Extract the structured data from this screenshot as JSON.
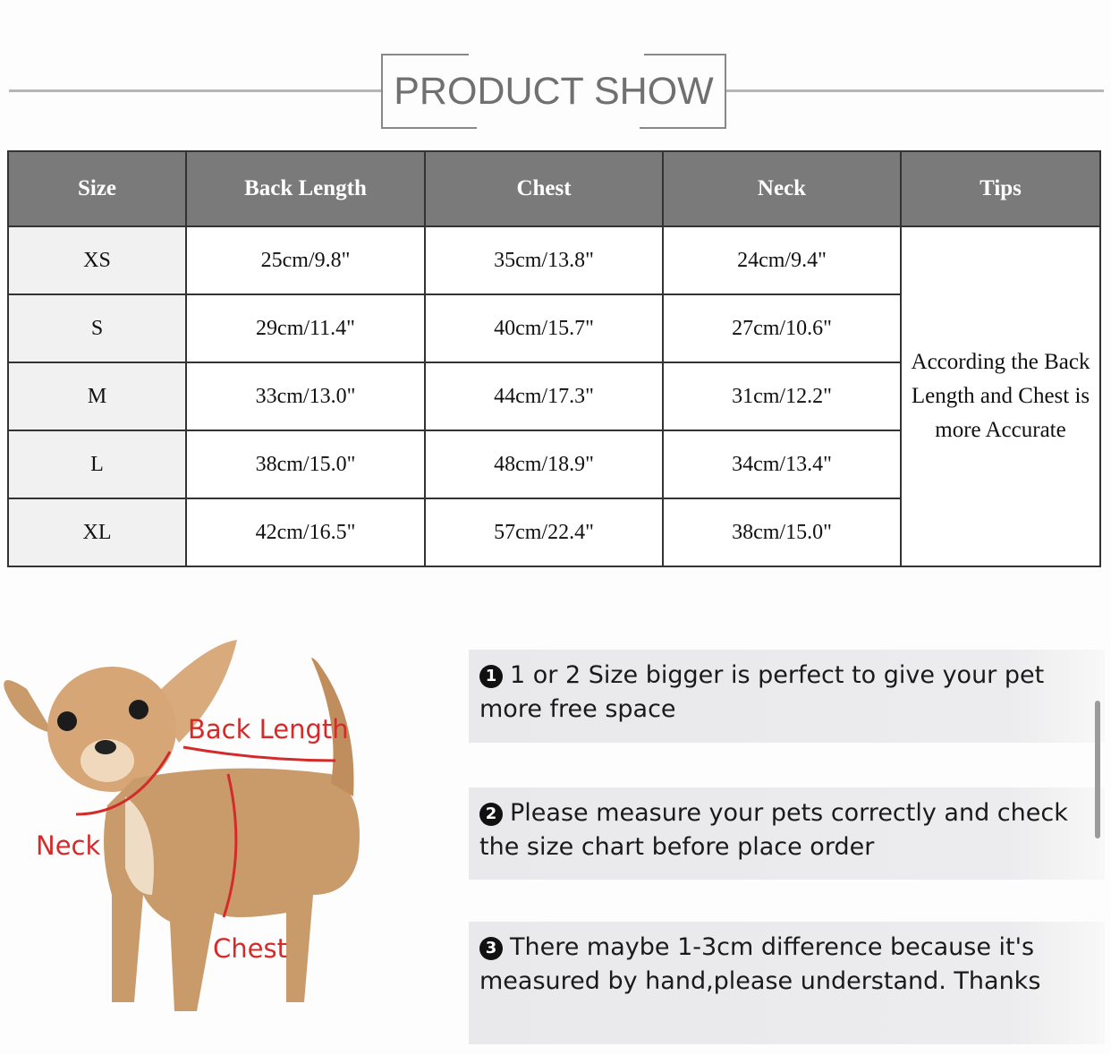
{
  "header": {
    "title": "PRODUCT SHOW"
  },
  "size_table": {
    "columns": [
      "Size",
      "Back Length",
      "Chest",
      "Neck",
      "Tips"
    ],
    "rows": [
      {
        "size": "XS",
        "back_length": "25cm/9.8\"",
        "chest": "35cm/13.8\"",
        "neck": "24cm/9.4\""
      },
      {
        "size": "S",
        "back_length": "29cm/11.4\"",
        "chest": "40cm/15.7\"",
        "neck": "27cm/10.6\""
      },
      {
        "size": "M",
        "back_length": "33cm/13.0\"",
        "chest": "44cm/17.3\"",
        "neck": "31cm/12.2\""
      },
      {
        "size": "L",
        "back_length": "38cm/15.0\"",
        "chest": "48cm/18.9\"",
        "neck": "34cm/13.4\""
      },
      {
        "size": "XL",
        "back_length": "42cm/16.5\"",
        "chest": "57cm/22.4\"",
        "neck": "38cm/15.0\""
      }
    ],
    "tips": "According the Back Length and Chest is more Accurate"
  },
  "diagram": {
    "labels": {
      "back_length": "Back Length",
      "neck": "Neck",
      "chest": "Chest"
    },
    "annotation_color": "#d42a2a"
  },
  "notes": [
    {
      "number": "1",
      "text": "1 or 2 Size bigger is perfect to give your pet more free space"
    },
    {
      "number": "2",
      "text": "Please measure your pets correctly and check the size chart before place order"
    },
    {
      "number": "3",
      "text": "There maybe 1-3cm difference because it's measured by hand,please understand. Thanks"
    }
  ]
}
